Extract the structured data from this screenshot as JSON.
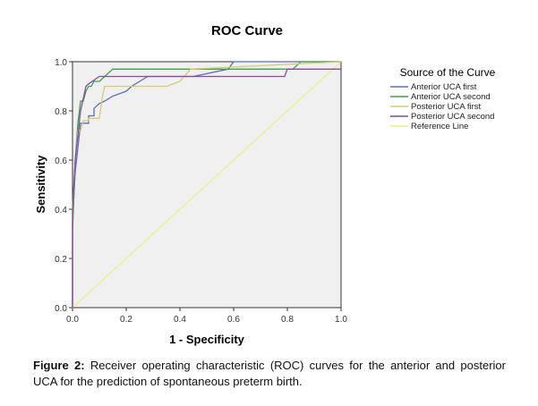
{
  "chart_data": {
    "type": "line",
    "title": "ROC Curve",
    "xlabel": "1 - Specificity",
    "ylabel": "Sensitivity",
    "xlim": [
      0,
      1
    ],
    "ylim": [
      0,
      1
    ],
    "xticks": [
      "0.0",
      "0.2",
      "0.4",
      "0.6",
      "0.8",
      "1.0"
    ],
    "yticks": [
      "0.0",
      "0.2",
      "0.4",
      "0.6",
      "0.8",
      "1.0"
    ],
    "grid": false,
    "legend_title": "Source of the Curve",
    "legend_position": "right",
    "series": [
      {
        "name": "Anterior UCA first",
        "color": "#5a6fb5",
        "x": [
          0,
          0,
          0.01,
          0.02,
          0.03,
          0.04,
          0.05,
          0.06,
          0.06,
          0.08,
          0.08,
          0.1,
          0.12,
          0.15,
          0.2,
          0.22,
          0.28,
          0.45,
          0.58,
          0.6,
          1.0
        ],
        "y": [
          0,
          0.35,
          0.55,
          0.65,
          0.75,
          0.75,
          0.75,
          0.75,
          0.78,
          0.78,
          0.81,
          0.83,
          0.84,
          0.86,
          0.88,
          0.9,
          0.94,
          0.94,
          0.97,
          1.0,
          1.0
        ]
      },
      {
        "name": "Anterior UCA second",
        "color": "#3aa34a",
        "x": [
          0,
          0,
          0.01,
          0.02,
          0.03,
          0.04,
          0.05,
          0.06,
          0.07,
          0.08,
          0.1,
          0.12,
          0.15,
          0.25,
          0.55,
          0.82,
          0.85,
          1.0
        ],
        "y": [
          0,
          0.3,
          0.6,
          0.75,
          0.84,
          0.84,
          0.88,
          0.9,
          0.9,
          0.92,
          0.92,
          0.94,
          0.97,
          0.97,
          0.97,
          0.97,
          1.0,
          1.0
        ]
      },
      {
        "name": "Posterior UCA first",
        "color": "#d8c878",
        "x": [
          0,
          0,
          0.01,
          0.02,
          0.03,
          0.04,
          0.05,
          0.06,
          0.06,
          0.1,
          0.11,
          0.12,
          0.2,
          0.25,
          0.35,
          0.4,
          0.44,
          1.0
        ],
        "y": [
          0,
          0.4,
          0.6,
          0.72,
          0.72,
          0.76,
          0.76,
          0.76,
          0.77,
          0.77,
          0.85,
          0.9,
          0.9,
          0.9,
          0.9,
          0.92,
          0.97,
          1.0
        ]
      },
      {
        "name": "Posterior UCA second",
        "color": "#8a4aa0",
        "x": [
          0,
          0,
          0.01,
          0.02,
          0.03,
          0.04,
          0.05,
          0.06,
          0.1,
          0.3,
          0.6,
          0.79,
          0.8,
          1.0
        ],
        "y": [
          0,
          0.4,
          0.6,
          0.7,
          0.8,
          0.85,
          0.9,
          0.91,
          0.94,
          0.94,
          0.94,
          0.94,
          0.97,
          0.97
        ]
      },
      {
        "name": "Reference Line",
        "color": "#f0ee8c",
        "x": [
          0,
          1
        ],
        "y": [
          0,
          1
        ]
      }
    ]
  },
  "caption": {
    "label": "Figure 2:",
    "text": " Receiver operating characteristic (ROC) curves for the anterior and posterior UCA for the prediction of spontaneous preterm birth."
  }
}
